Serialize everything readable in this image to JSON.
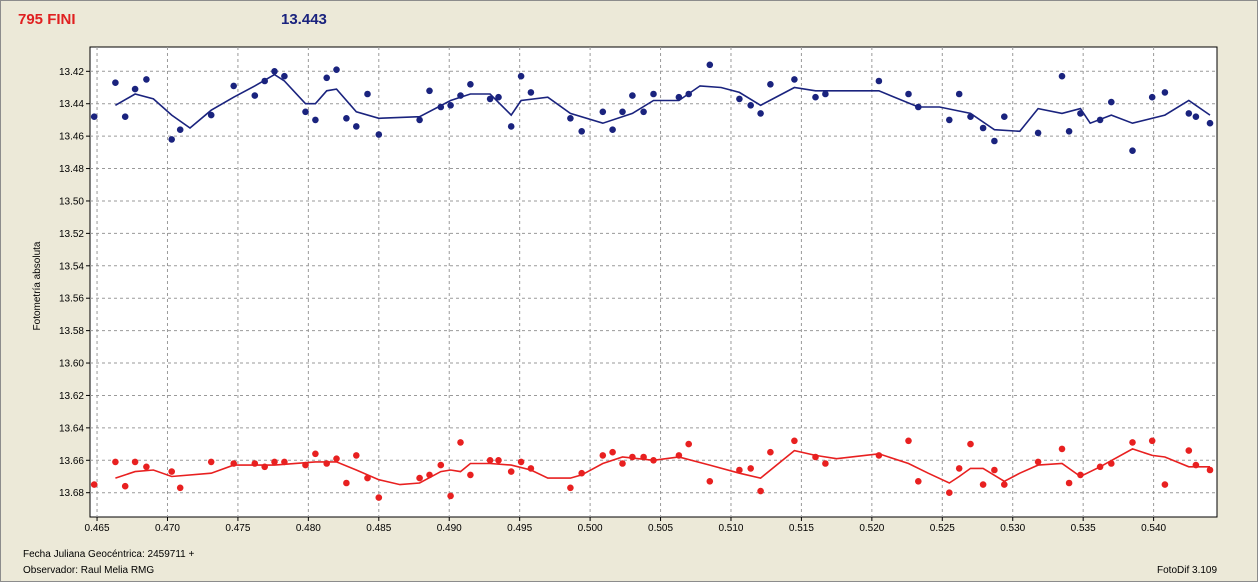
{
  "header": {
    "object_label": "795 FINI",
    "magnitude_value": "13.443",
    "object_color": "#e02020",
    "magnitude_color": "#1a237e"
  },
  "footer": {
    "julian_date": "Fecha Juliana Geocéntrica: 2459711 +",
    "observer": "Observador: Raul Melia RMG",
    "software": "FotoDif 3.109"
  },
  "chart_data": {
    "type": "scatter",
    "ylabel": "Fotometría absoluta",
    "xlim": [
      0.4645,
      0.5445
    ],
    "ylim": [
      13.405,
      13.695
    ],
    "y_inverted": true,
    "grid": true,
    "x_ticks": [
      "0.465",
      "0.470",
      "0.475",
      "0.480",
      "0.485",
      "0.490",
      "0.495",
      "0.500",
      "0.505",
      "0.510",
      "0.515",
      "0.520",
      "0.525",
      "0.530",
      "0.535",
      "0.540"
    ],
    "x_tick_values": [
      0.465,
      0.47,
      0.475,
      0.48,
      0.485,
      0.49,
      0.495,
      0.5,
      0.505,
      0.51,
      0.515,
      0.52,
      0.525,
      0.53,
      0.535,
      0.54
    ],
    "y_ticks": [
      "13.42",
      "13.44",
      "13.46",
      "13.48",
      "13.50",
      "13.52",
      "13.54",
      "13.56",
      "13.58",
      "13.60",
      "13.62",
      "13.64",
      "13.66",
      "13.68"
    ],
    "y_tick_values": [
      13.42,
      13.44,
      13.46,
      13.48,
      13.5,
      13.52,
      13.54,
      13.56,
      13.58,
      13.6,
      13.62,
      13.64,
      13.66,
      13.68
    ],
    "series": [
      {
        "color": "#1a237e",
        "points": [
          [
            0.4648,
            13.448
          ],
          [
            0.4663,
            13.427
          ],
          [
            0.467,
            13.448
          ],
          [
            0.4677,
            13.431
          ],
          [
            0.4685,
            13.425
          ],
          [
            0.4703,
            13.462
          ],
          [
            0.4709,
            13.456
          ],
          [
            0.4731,
            13.447
          ],
          [
            0.4747,
            13.429
          ],
          [
            0.4762,
            13.435
          ],
          [
            0.4769,
            13.426
          ],
          [
            0.4776,
            13.42
          ],
          [
            0.4783,
            13.423
          ],
          [
            0.4798,
            13.445
          ],
          [
            0.4805,
            13.45
          ],
          [
            0.4813,
            13.424
          ],
          [
            0.482,
            13.419
          ],
          [
            0.4827,
            13.449
          ],
          [
            0.4834,
            13.454
          ],
          [
            0.4842,
            13.434
          ],
          [
            0.485,
            13.459
          ],
          [
            0.4879,
            13.45
          ],
          [
            0.4886,
            13.432
          ],
          [
            0.4894,
            13.442
          ],
          [
            0.4901,
            13.441
          ],
          [
            0.4908,
            13.435
          ],
          [
            0.4915,
            13.428
          ],
          [
            0.4929,
            13.437
          ],
          [
            0.4935,
            13.436
          ],
          [
            0.4944,
            13.454
          ],
          [
            0.4951,
            13.423
          ],
          [
            0.4958,
            13.433
          ],
          [
            0.4986,
            13.449
          ],
          [
            0.4994,
            13.457
          ],
          [
            0.5009,
            13.445
          ],
          [
            0.5016,
            13.456
          ],
          [
            0.5023,
            13.445
          ],
          [
            0.503,
            13.435
          ],
          [
            0.5038,
            13.445
          ],
          [
            0.5045,
            13.434
          ],
          [
            0.5063,
            13.436
          ],
          [
            0.507,
            13.434
          ],
          [
            0.5085,
            13.416
          ],
          [
            0.5106,
            13.437
          ],
          [
            0.5114,
            13.441
          ],
          [
            0.5121,
            13.446
          ],
          [
            0.5128,
            13.428
          ],
          [
            0.5145,
            13.425
          ],
          [
            0.516,
            13.436
          ],
          [
            0.5167,
            13.434
          ],
          [
            0.5205,
            13.426
          ],
          [
            0.5226,
            13.434
          ],
          [
            0.5233,
            13.442
          ],
          [
            0.5255,
            13.45
          ],
          [
            0.5262,
            13.434
          ],
          [
            0.527,
            13.448
          ],
          [
            0.5279,
            13.455
          ],
          [
            0.5287,
            13.463
          ],
          [
            0.5294,
            13.448
          ],
          [
            0.5318,
            13.458
          ],
          [
            0.5335,
            13.423
          ],
          [
            0.534,
            13.457
          ],
          [
            0.5348,
            13.446
          ],
          [
            0.5362,
            13.45
          ],
          [
            0.537,
            13.439
          ],
          [
            0.5385,
            13.469
          ],
          [
            0.5399,
            13.436
          ],
          [
            0.5408,
            13.433
          ],
          [
            0.5425,
            13.446
          ],
          [
            0.543,
            13.448
          ],
          [
            0.544,
            13.452
          ]
        ],
        "trend": [
          [
            0.4663,
            13.441
          ],
          [
            0.4677,
            13.434
          ],
          [
            0.469,
            13.437
          ],
          [
            0.4703,
            13.447
          ],
          [
            0.4716,
            13.455
          ],
          [
            0.4731,
            13.444
          ],
          [
            0.4747,
            13.436
          ],
          [
            0.4762,
            13.429
          ],
          [
            0.4776,
            13.422
          ],
          [
            0.4783,
            13.426
          ],
          [
            0.4798,
            13.44
          ],
          [
            0.4805,
            13.44
          ],
          [
            0.4813,
            13.432
          ],
          [
            0.482,
            13.431
          ],
          [
            0.4834,
            13.445
          ],
          [
            0.485,
            13.449
          ],
          [
            0.4879,
            13.448
          ],
          [
            0.4901,
            13.438
          ],
          [
            0.4915,
            13.434
          ],
          [
            0.4929,
            13.434
          ],
          [
            0.4944,
            13.447
          ],
          [
            0.4951,
            13.438
          ],
          [
            0.497,
            13.436
          ],
          [
            0.4986,
            13.446
          ],
          [
            0.5009,
            13.452
          ],
          [
            0.503,
            13.446
          ],
          [
            0.5045,
            13.438
          ],
          [
            0.5063,
            13.438
          ],
          [
            0.5078,
            13.429
          ],
          [
            0.5093,
            13.43
          ],
          [
            0.5106,
            13.433
          ],
          [
            0.5121,
            13.441
          ],
          [
            0.5145,
            13.43
          ],
          [
            0.516,
            13.432
          ],
          [
            0.5205,
            13.432
          ],
          [
            0.5233,
            13.442
          ],
          [
            0.5248,
            13.442
          ],
          [
            0.527,
            13.446
          ],
          [
            0.5287,
            13.456
          ],
          [
            0.5305,
            13.457
          ],
          [
            0.5318,
            13.443
          ],
          [
            0.5335,
            13.446
          ],
          [
            0.5348,
            13.443
          ],
          [
            0.5355,
            13.452
          ],
          [
            0.537,
            13.447
          ],
          [
            0.5385,
            13.452
          ],
          [
            0.5408,
            13.447
          ],
          [
            0.5425,
            13.438
          ],
          [
            0.544,
            13.447
          ]
        ]
      },
      {
        "color": "#e82020",
        "points": [
          [
            0.4648,
            13.675
          ],
          [
            0.4663,
            13.661
          ],
          [
            0.467,
            13.676
          ],
          [
            0.4677,
            13.661
          ],
          [
            0.4685,
            13.664
          ],
          [
            0.4703,
            13.667
          ],
          [
            0.4709,
            13.677
          ],
          [
            0.4731,
            13.661
          ],
          [
            0.4747,
            13.662
          ],
          [
            0.4762,
            13.662
          ],
          [
            0.4769,
            13.664
          ],
          [
            0.4776,
            13.661
          ],
          [
            0.4783,
            13.661
          ],
          [
            0.4798,
            13.663
          ],
          [
            0.4805,
            13.656
          ],
          [
            0.4813,
            13.662
          ],
          [
            0.482,
            13.659
          ],
          [
            0.4827,
            13.674
          ],
          [
            0.4834,
            13.657
          ],
          [
            0.4842,
            13.671
          ],
          [
            0.485,
            13.683
          ],
          [
            0.4879,
            13.671
          ],
          [
            0.4886,
            13.669
          ],
          [
            0.4894,
            13.663
          ],
          [
            0.4901,
            13.682
          ],
          [
            0.4908,
            13.649
          ],
          [
            0.4915,
            13.669
          ],
          [
            0.4929,
            13.66
          ],
          [
            0.4935,
            13.66
          ],
          [
            0.4944,
            13.667
          ],
          [
            0.4951,
            13.661
          ],
          [
            0.4958,
            13.665
          ],
          [
            0.4986,
            13.677
          ],
          [
            0.4994,
            13.668
          ],
          [
            0.5009,
            13.657
          ],
          [
            0.5016,
            13.655
          ],
          [
            0.5023,
            13.662
          ],
          [
            0.503,
            13.658
          ],
          [
            0.5038,
            13.658
          ],
          [
            0.5045,
            13.66
          ],
          [
            0.5063,
            13.657
          ],
          [
            0.507,
            13.65
          ],
          [
            0.5085,
            13.673
          ],
          [
            0.5106,
            13.666
          ],
          [
            0.5114,
            13.665
          ],
          [
            0.5121,
            13.679
          ],
          [
            0.5128,
            13.655
          ],
          [
            0.5145,
            13.648
          ],
          [
            0.516,
            13.658
          ],
          [
            0.5167,
            13.662
          ],
          [
            0.5205,
            13.657
          ],
          [
            0.5226,
            13.648
          ],
          [
            0.5233,
            13.673
          ],
          [
            0.5255,
            13.68
          ],
          [
            0.5262,
            13.665
          ],
          [
            0.527,
            13.65
          ],
          [
            0.5279,
            13.675
          ],
          [
            0.5287,
            13.666
          ],
          [
            0.5294,
            13.675
          ],
          [
            0.5318,
            13.661
          ],
          [
            0.5335,
            13.653
          ],
          [
            0.534,
            13.674
          ],
          [
            0.5348,
            13.669
          ],
          [
            0.5362,
            13.664
          ],
          [
            0.537,
            13.662
          ],
          [
            0.5385,
            13.649
          ],
          [
            0.5399,
            13.648
          ],
          [
            0.5408,
            13.675
          ],
          [
            0.5425,
            13.654
          ],
          [
            0.543,
            13.663
          ],
          [
            0.544,
            13.666
          ]
        ],
        "trend": [
          [
            0.4663,
            13.671
          ],
          [
            0.4677,
            13.667
          ],
          [
            0.469,
            13.666
          ],
          [
            0.4703,
            13.67
          ],
          [
            0.4731,
            13.668
          ],
          [
            0.4747,
            13.663
          ],
          [
            0.4776,
            13.663
          ],
          [
            0.4805,
            13.661
          ],
          [
            0.482,
            13.661
          ],
          [
            0.4834,
            13.666
          ],
          [
            0.485,
            13.672
          ],
          [
            0.4865,
            13.675
          ],
          [
            0.4879,
            13.674
          ],
          [
            0.4894,
            13.667
          ],
          [
            0.4901,
            13.666
          ],
          [
            0.4908,
            13.667
          ],
          [
            0.4915,
            13.662
          ],
          [
            0.4929,
            13.662
          ],
          [
            0.4944,
            13.663
          ],
          [
            0.4958,
            13.666
          ],
          [
            0.497,
            13.671
          ],
          [
            0.4986,
            13.671
          ],
          [
            0.4994,
            13.669
          ],
          [
            0.5009,
            13.662
          ],
          [
            0.5023,
            13.658
          ],
          [
            0.5045,
            13.66
          ],
          [
            0.5063,
            13.658
          ],
          [
            0.5085,
            13.663
          ],
          [
            0.5106,
            13.668
          ],
          [
            0.5121,
            13.671
          ],
          [
            0.5145,
            13.654
          ],
          [
            0.516,
            13.657
          ],
          [
            0.5175,
            13.659
          ],
          [
            0.5205,
            13.656
          ],
          [
            0.5226,
            13.662
          ],
          [
            0.524,
            13.668
          ],
          [
            0.5255,
            13.674
          ],
          [
            0.5262,
            13.67
          ],
          [
            0.527,
            13.665
          ],
          [
            0.5279,
            13.665
          ],
          [
            0.5294,
            13.673
          ],
          [
            0.5305,
            13.668
          ],
          [
            0.5318,
            13.663
          ],
          [
            0.5335,
            13.662
          ],
          [
            0.5348,
            13.67
          ],
          [
            0.5362,
            13.664
          ],
          [
            0.5385,
            13.653
          ],
          [
            0.5399,
            13.657
          ],
          [
            0.5408,
            13.658
          ],
          [
            0.5425,
            13.664
          ],
          [
            0.544,
            13.664
          ]
        ]
      }
    ]
  }
}
